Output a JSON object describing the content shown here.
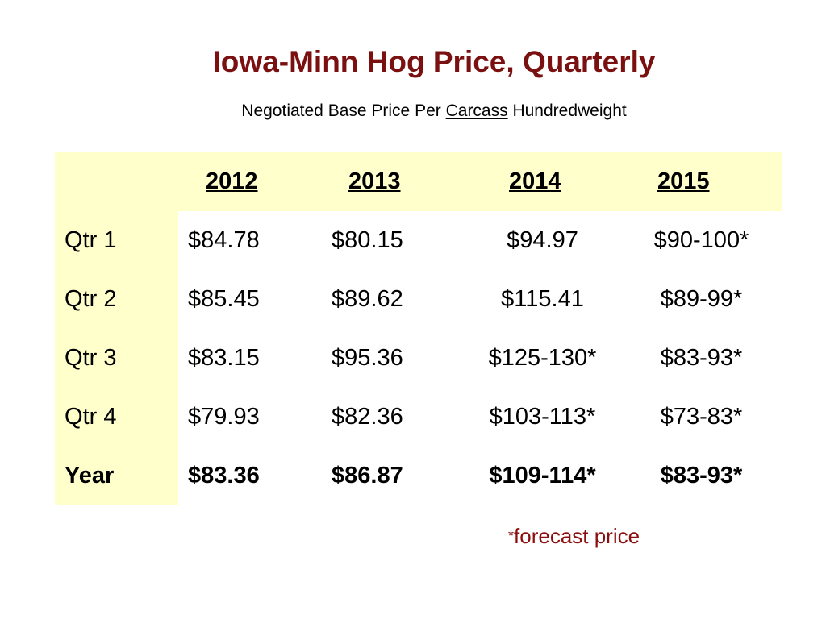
{
  "title": "Iowa-Minn Hog Price, Quarterly",
  "subtitle": {
    "prefix": "Negotiated Base Price Per ",
    "underlined": "Carcass",
    "suffix": " Hundredweight"
  },
  "table": {
    "years": [
      "2012",
      "2013",
      "2014",
      "2015"
    ],
    "rows": [
      {
        "label": "Qtr 1",
        "values": [
          "$84.78",
          "$80.15",
          "$94.97",
          "$90-100*"
        ]
      },
      {
        "label": "Qtr 2",
        "values": [
          "$85.45",
          "$89.62",
          "$115.41",
          "$89-99*"
        ]
      },
      {
        "label": "Qtr 3",
        "values": [
          "$83.15",
          "$95.36",
          "$125-130*",
          "$83-93*"
        ]
      },
      {
        "label": "Qtr 4",
        "values": [
          "$79.93",
          "$82.36",
          "$103-113*",
          "$73-83*"
        ]
      },
      {
        "label": "Year",
        "values": [
          "$83.36",
          "$86.87",
          "$109-114*",
          "$83-93*"
        ]
      }
    ]
  },
  "footnote": {
    "star": "*",
    "text": "forecast price"
  },
  "colors": {
    "title": "#7a1010",
    "forecast": "#8b0f0f",
    "highlight": "#ffffcc"
  }
}
